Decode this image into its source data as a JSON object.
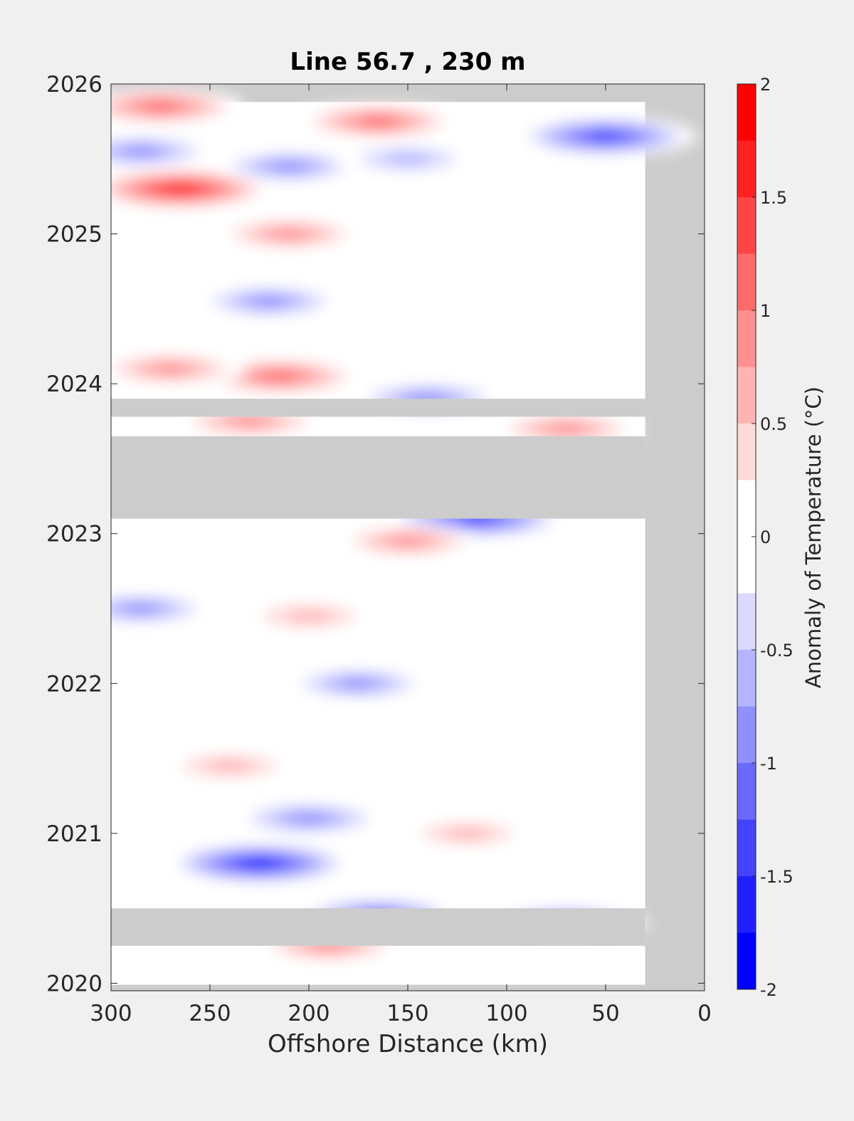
{
  "chart_data": {
    "type": "heatmap",
    "title": "Line 56.7 , 230 m",
    "xlabel": "Offshore Distance (km)",
    "ylabel": "",
    "xlim": [
      300,
      0
    ],
    "x_reversed": true,
    "ylim": [
      2019.95,
      2026
    ],
    "x_ticks": [
      300,
      250,
      200,
      150,
      100,
      50,
      0
    ],
    "y_ticks": [
      2020,
      2021,
      2022,
      2023,
      2024,
      2025,
      2026
    ],
    "colorbar": {
      "label": "Anomaly of Temperature (°C)",
      "range": [
        -2,
        2
      ],
      "ticks": [
        -2,
        -1.5,
        -1,
        -0.5,
        0,
        0.5,
        1,
        1.5,
        2
      ],
      "levels": [
        -2,
        -1.75,
        -1.5,
        -1.25,
        -1,
        -0.75,
        -0.5,
        -0.25,
        0.25,
        0.5,
        0.75,
        1,
        1.25,
        1.5,
        1.75,
        2
      ],
      "colors": [
        "#0000ff",
        "#2020ff",
        "#4444ff",
        "#6a6aff",
        "#9090ff",
        "#b4b4ff",
        "#dadaff",
        "#ffffff",
        "#ffdada",
        "#ffb4b4",
        "#ff9090",
        "#ff6a6a",
        "#ff4444",
        "#ff2020",
        "#ff0000"
      ]
    },
    "no_data_color": "#cccccc",
    "data_coverage_x_min_km": 30,
    "no_data_periods": [
      [
        2023.1,
        2023.65
      ],
      [
        2023.78,
        2023.9
      ],
      [
        2020.25,
        2020.5
      ]
    ],
    "anomalies": [
      {
        "x": 265,
        "y": 2025.3,
        "value": 1.6
      },
      {
        "x": 275,
        "y": 2025.85,
        "value": 1.2
      },
      {
        "x": 165,
        "y": 2025.75,
        "value": 1.1
      },
      {
        "x": 215,
        "y": 2024.05,
        "value": 1.25
      },
      {
        "x": 270,
        "y": 2024.1,
        "value": 0.9
      },
      {
        "x": 50,
        "y": 2025.65,
        "value": -1.5
      },
      {
        "x": 210,
        "y": 2025.45,
        "value": -0.9
      },
      {
        "x": 150,
        "y": 2025.5,
        "value": -0.75
      },
      {
        "x": 285,
        "y": 2025.55,
        "value": -0.9
      },
      {
        "x": 220,
        "y": 2024.55,
        "value": -0.9
      },
      {
        "x": 115,
        "y": 2023.1,
        "value": -1.5
      },
      {
        "x": 225,
        "y": 2020.8,
        "value": -1.6
      },
      {
        "x": 165,
        "y": 2020.45,
        "value": -1.25
      },
      {
        "x": 70,
        "y": 2020.4,
        "value": -1.1
      },
      {
        "x": 200,
        "y": 2021.1,
        "value": -1.0
      },
      {
        "x": 175,
        "y": 2022.0,
        "value": -0.8
      },
      {
        "x": 285,
        "y": 2022.5,
        "value": -0.8
      },
      {
        "x": 140,
        "y": 2023.9,
        "value": -1.0
      },
      {
        "x": 190,
        "y": 2020.25,
        "value": 0.9
      },
      {
        "x": 240,
        "y": 2021.45,
        "value": 0.7
      },
      {
        "x": 150,
        "y": 2022.95,
        "value": 0.8
      },
      {
        "x": 210,
        "y": 2025.0,
        "value": 0.9
      },
      {
        "x": 200,
        "y": 2022.45,
        "value": 0.7
      },
      {
        "x": 120,
        "y": 2021.0,
        "value": 0.6
      },
      {
        "x": 70,
        "y": 2023.7,
        "value": 0.9
      },
      {
        "x": 230,
        "y": 2023.75,
        "value": 0.9
      }
    ]
  }
}
